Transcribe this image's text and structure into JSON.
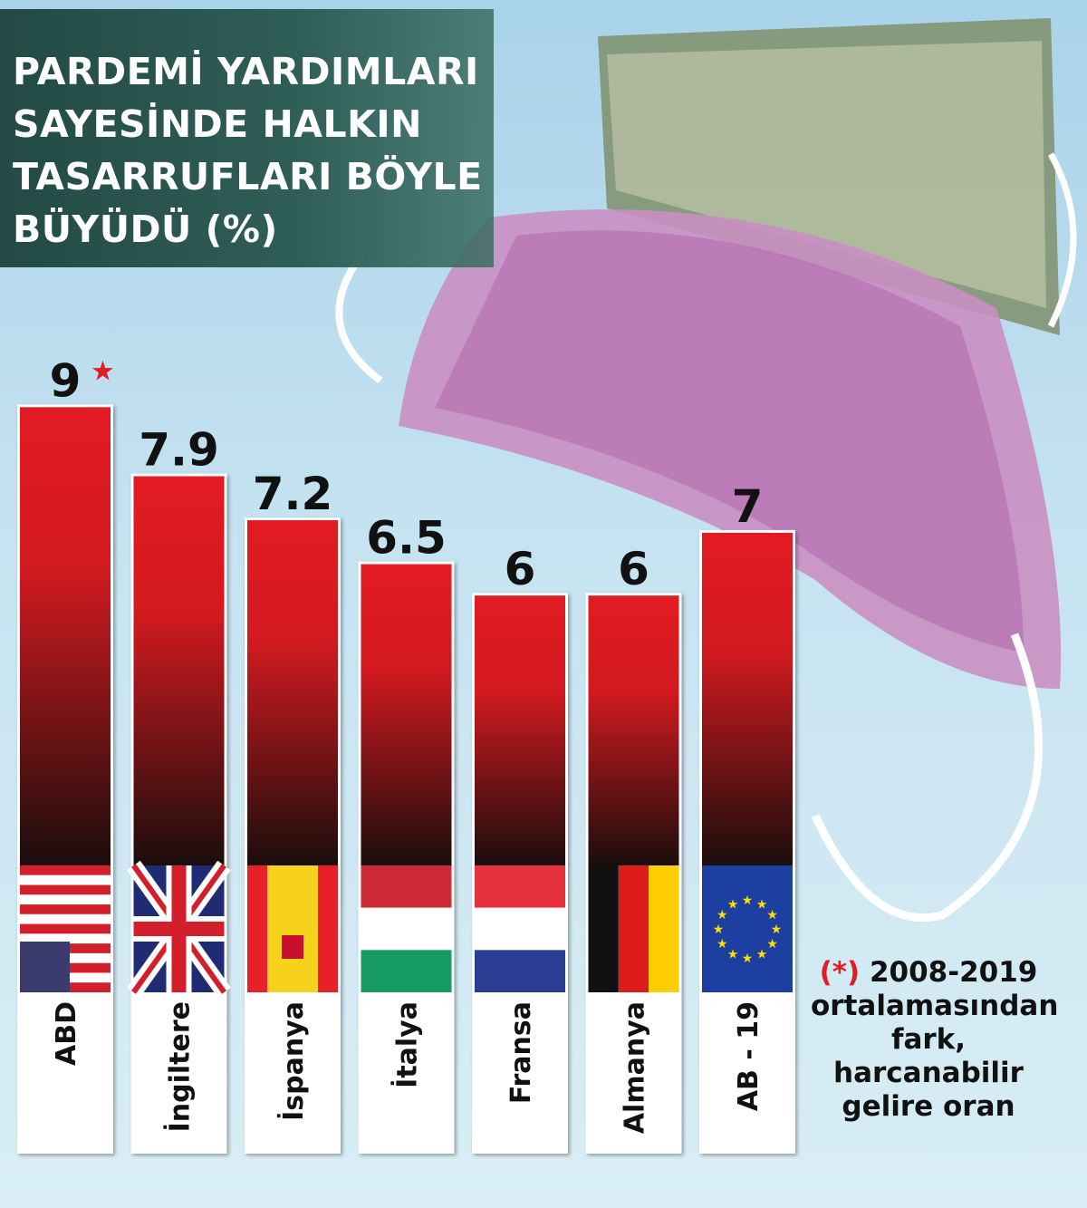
{
  "title": "PARDEMİ YARDIMLARI\nSAYESİNDE HALKIN\nTASARRUFLARI BÖYLE\nBÜYÜDÜ (%)",
  "footnote": {
    "mark": "(*)",
    "text_line1": "2008-2019",
    "text_rest": "ortalamasından fark, harcanabilir gelire oran"
  },
  "colors": {
    "bar_top": "#e31b23",
    "bar_bottom": "#1a0d0c",
    "star": "#e31b23"
  },
  "chart_data": {
    "type": "bar",
    "title": "PARDEMİ YARDIMLARI SAYESİNDE HALKIN TASARRUFLARI BÖYLE BÜYÜDÜ (%)",
    "xlabel": "",
    "ylabel": "%",
    "ylim": [
      0,
      9
    ],
    "categories": [
      "ABD",
      "İngiltere",
      "İspanya",
      "İtalya",
      "Fransa",
      "Almanya",
      "AB - 19"
    ],
    "values": [
      9,
      7.9,
      7.2,
      6.5,
      6,
      6,
      7
    ],
    "value_labels": [
      "9",
      "7.9",
      "7.2",
      "6.5",
      "6",
      "6",
      "7"
    ],
    "star_marker": "★",
    "flags": [
      "usa",
      "uk",
      "spain",
      "italy",
      "france",
      "germany",
      "eu"
    ]
  }
}
